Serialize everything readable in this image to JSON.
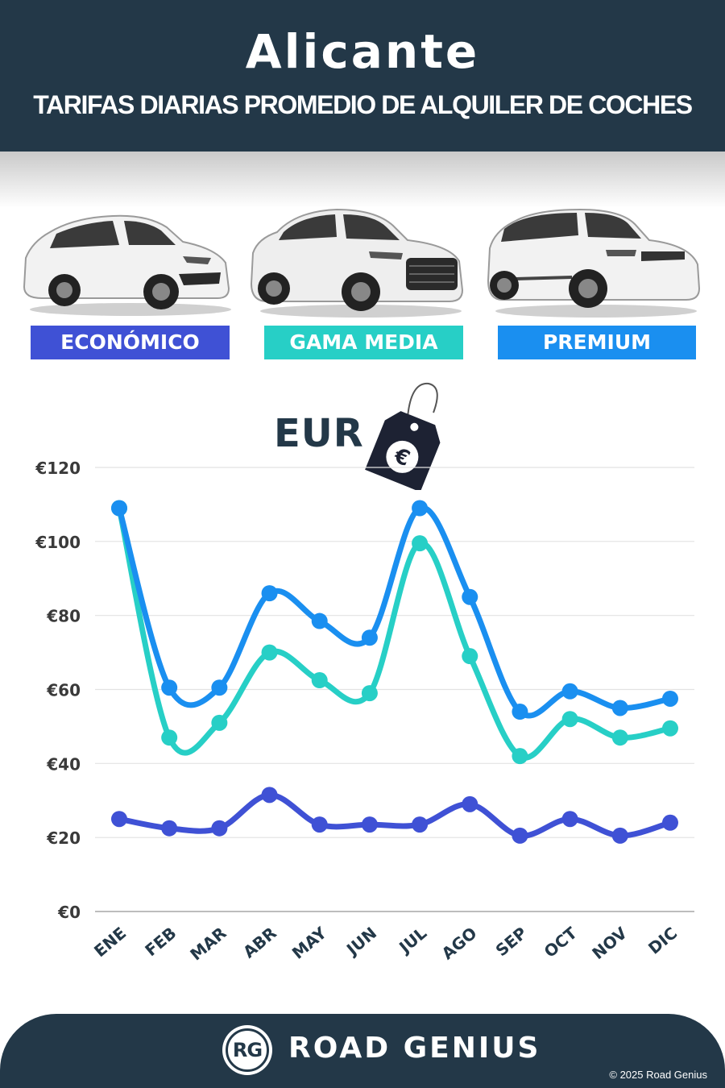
{
  "header": {
    "title": "Alicante",
    "subtitle": "TARIFAS DIARIAS PROMEDIO DE ALQUILER DE COCHES"
  },
  "categories": [
    {
      "label": "ECONÓMICO",
      "color": "#3f51d5"
    },
    {
      "label": "GAMA MEDIA",
      "color": "#27cfc6"
    },
    {
      "label": "PREMIUM",
      "color": "#1a8ff0"
    }
  ],
  "currency_label": "EUR",
  "currency_tag_symbol": "€",
  "footer": {
    "logo": "RG",
    "brand": "ROAD GENIUS",
    "copyright": "© 2025 Road Genius"
  },
  "chart_data": {
    "type": "line",
    "categories": [
      "ENE",
      "FEB",
      "MAR",
      "ABR",
      "MAY",
      "JUN",
      "JUL",
      "AGO",
      "SEP",
      "OCT",
      "NOV",
      "DIC"
    ],
    "series": [
      {
        "name": "ECONÓMICO",
        "color": "#3f51d5",
        "values": [
          25,
          22.5,
          22.5,
          31.5,
          23.5,
          23.5,
          23.5,
          29,
          20.5,
          25,
          20.5,
          24
        ]
      },
      {
        "name": "GAMA MEDIA",
        "color": "#27cfc6",
        "values": [
          109,
          47,
          51,
          70,
          62.5,
          59,
          99.5,
          69,
          42,
          52,
          47,
          49.5
        ]
      },
      {
        "name": "PREMIUM",
        "color": "#1a8ff0",
        "values": [
          109,
          60.5,
          60.5,
          86,
          78.5,
          74,
          109,
          85,
          54,
          59.5,
          55,
          57.5
        ]
      }
    ],
    "ylim": [
      0,
      120
    ],
    "yticks": [
      0,
      20,
      40,
      60,
      80,
      100,
      120
    ],
    "ytick_labels": [
      "€0",
      "€20",
      "€40",
      "€60",
      "€80",
      "€100",
      "€120"
    ],
    "grid": true
  }
}
